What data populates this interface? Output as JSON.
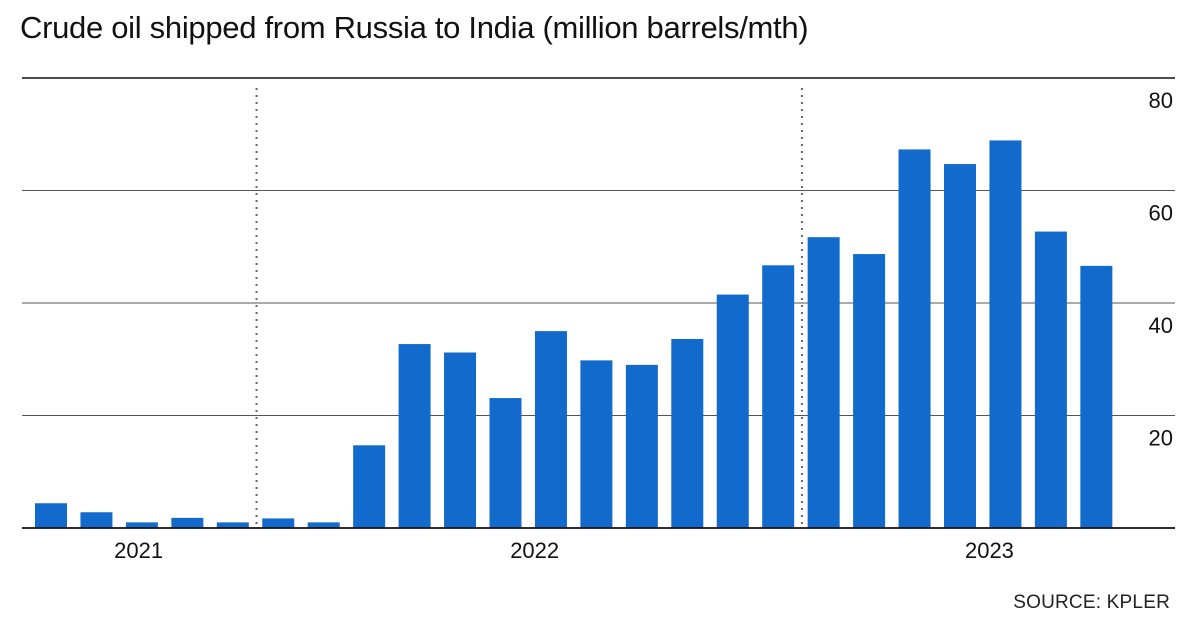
{
  "title": "Crude oil shipped from Russia to India (million barrels/mth)",
  "source": "SOURCE: KPLER",
  "colors": {
    "bar": "#116ACC",
    "grid": "#555555",
    "axis": "#111111",
    "divider": "#666666",
    "text": "#111111"
  },
  "chart_data": {
    "type": "bar",
    "title": "Crude oil shipped from Russia to India (million barrels/mth)",
    "xlabel": "",
    "ylabel": "",
    "ylim": [
      0,
      80
    ],
    "yticks": [
      20,
      40,
      60,
      80
    ],
    "y_axis_side": "right",
    "grid": true,
    "legend": "none",
    "year_labels": [
      "2021",
      "2022",
      "2023"
    ],
    "values": [
      4.4,
      2.8,
      1.0,
      1.8,
      1.0,
      1.7,
      1.0,
      14.7,
      32.7,
      31.2,
      23.1,
      35.0,
      29.8,
      29.0,
      33.6,
      41.5,
      46.7,
      51.7,
      48.7,
      67.3,
      64.7,
      68.9,
      52.7,
      46.6
    ]
  }
}
